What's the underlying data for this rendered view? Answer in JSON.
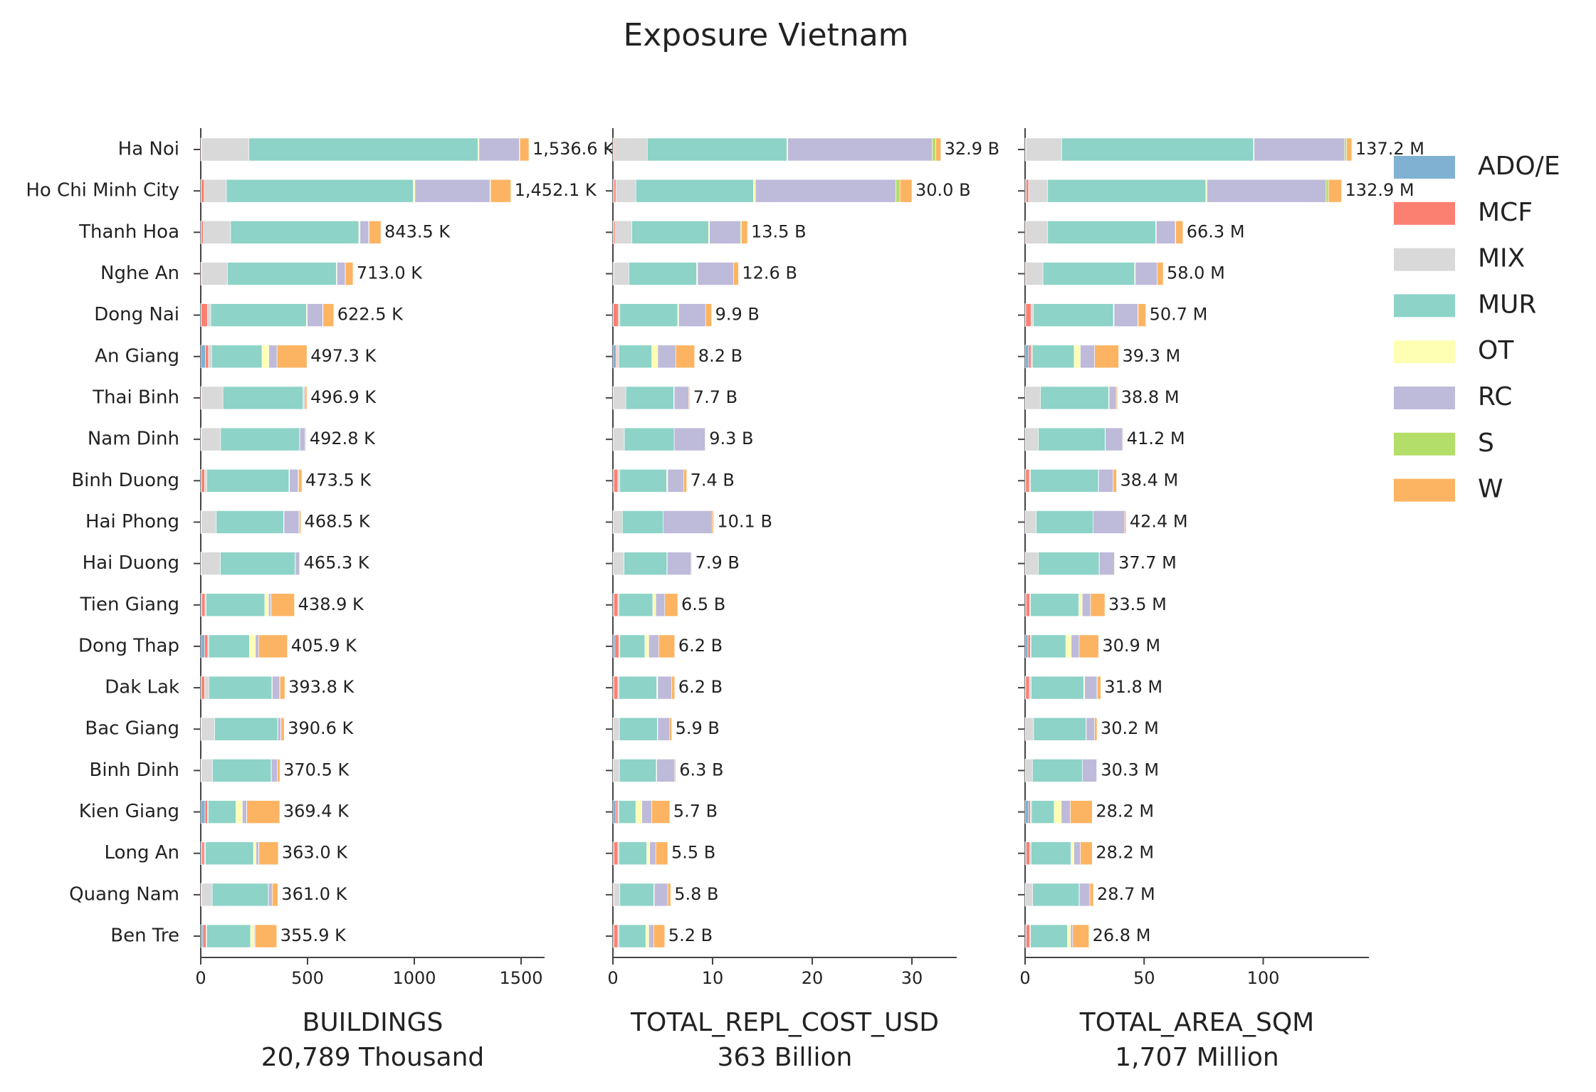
{
  "title": "Exposure Vietnam",
  "chart_data": [
    {
      "type": "bar",
      "orientation": "horizontal",
      "xlabel": "BUILDINGS",
      "xlabel_note": "20,789 Thousand",
      "categories": [
        "Ha Noi",
        "Ho Chi Minh City",
        "Thanh Hoa",
        "Nghe An",
        "Dong Nai",
        "An Giang",
        "Thai Binh",
        "Nam Dinh",
        "Binh Duong",
        "Hai Phong",
        "Hai Duong",
        "Tien Giang",
        "Dong Thap",
        "Dak Lak",
        "Bac Giang",
        "Binh Dinh",
        "Kien Giang",
        "Long An",
        "Quang Nam",
        "Ben Tre"
      ],
      "xlim": [
        0,
        1610
      ],
      "xticks": [
        0,
        500,
        1000,
        1500
      ],
      "series": [
        {
          "name": "ADO/E",
          "color": "#80b1d3",
          "values": [
            1,
            2,
            2,
            1,
            2,
            22,
            1,
            1,
            3,
            1,
            1,
            5,
            18,
            3,
            1,
            1,
            20,
            5,
            1,
            10
          ]
        },
        {
          "name": "MCF",
          "color": "#fb8072",
          "values": [
            3,
            14,
            10,
            4,
            30,
            14,
            3,
            2,
            15,
            2,
            1,
            15,
            15,
            15,
            2,
            2,
            12,
            12,
            3,
            15
          ]
        },
        {
          "name": "MIX",
          "color": "#d9d9d9",
          "values": [
            222,
            104,
            128,
            120,
            15,
            15,
            100,
            90,
            10,
            70,
            90,
            5,
            5,
            20,
            62,
            52,
            3,
            5,
            50,
            3
          ]
        },
        {
          "name": "MUR",
          "color": "#8dd3c7",
          "values": [
            1072,
            875,
            600,
            510,
            448,
            236,
            375,
            370,
            385,
            315,
            350,
            275,
            190,
            295,
            295,
            275,
            130,
            225,
            262,
            205
          ]
        },
        {
          "name": "OT",
          "color": "#ffffb3",
          "values": [
            5,
            8,
            6,
            3,
            4,
            32,
            2,
            1,
            3,
            2,
            1,
            18,
            28,
            2,
            1,
            1,
            30,
            12,
            1,
            18
          ]
        },
        {
          "name": "RC",
          "color": "#bebada",
          "values": [
            188,
            351,
            40,
            38,
            72,
            38,
            6,
            25,
            40,
            70,
            20,
            10,
            15,
            35,
            14,
            28,
            20,
            12,
            18,
            5
          ]
        },
        {
          "name": "S",
          "color": "#b3de69",
          "values": [
            3,
            3,
            2,
            1,
            1.5,
            0,
            0.4,
            0.3,
            2,
            1,
            0.3,
            0.9,
            0,
            1,
            0.6,
            0.5,
            0.4,
            1,
            0,
            0
          ]
        },
        {
          "name": "W",
          "color": "#fdb462",
          "values": [
            42.6,
            95.1,
            55.5,
            36,
            50,
            140.3,
            9.5,
            3.5,
            15.5,
            7.5,
            2,
            110,
            134.9,
            22.8,
            15,
            11,
            154,
            91,
            26,
            99.9
          ]
        }
      ],
      "totals": [
        1536.6,
        1452.1,
        843.5,
        713.0,
        622.5,
        497.3,
        496.9,
        492.8,
        473.5,
        468.5,
        465.3,
        438.9,
        405.9,
        393.8,
        390.6,
        370.5,
        369.4,
        363.0,
        361.0,
        355.9
      ],
      "total_labels": [
        "1,536.6 K",
        "1,452.1 K",
        "843.5 K",
        "713.0 K",
        "622.5 K",
        "497.3 K",
        "496.9 K",
        "492.8 K",
        "473.5 K",
        "468.5 K",
        "465.3 K",
        "438.9 K",
        "405.9 K",
        "393.8 K",
        "390.6 K",
        "370.5 K",
        "369.4 K",
        "363.0 K",
        "361.0 K",
        "355.9 K"
      ]
    },
    {
      "type": "bar",
      "orientation": "horizontal",
      "xlabel": "TOTAL_REPL_COST_USD",
      "xlabel_note": "363 Billion",
      "xlim": [
        0,
        34.5
      ],
      "xticks": [
        0,
        10,
        20,
        30
      ],
      "series": [
        {
          "values": [
            0.05,
            0.1,
            0.05,
            0.02,
            0.05,
            0.3,
            0,
            0,
            0.1,
            0,
            0,
            0.1,
            0.2,
            0.1,
            0,
            0,
            0.3,
            0.1,
            0.02,
            0.1
          ]
        },
        {
          "values": [
            0.1,
            0.2,
            0.15,
            0.08,
            0.5,
            0.1,
            0.05,
            0.05,
            0.4,
            0.05,
            0.02,
            0.4,
            0.4,
            0.4,
            0.05,
            0.05,
            0.2,
            0.4,
            0.08,
            0.4
          ]
        },
        {
          "values": [
            3.3,
            2.0,
            1.7,
            1.5,
            0.15,
            0.2,
            1.25,
            1.1,
            0.2,
            0.9,
            1.1,
            0.1,
            0.1,
            0.1,
            0.6,
            0.6,
            0.1,
            0.1,
            0.6,
            0.1
          ]
        },
        {
          "values": [
            14.0,
            11.8,
            7.7,
            6.8,
            5.8,
            3.3,
            4.8,
            5.0,
            4.7,
            4.1,
            4.3,
            3.4,
            2.5,
            3.8,
            3.8,
            3.7,
            1.7,
            2.8,
            3.4,
            2.7
          ]
        },
        {
          "values": [
            0.1,
            0.2,
            0.1,
            0.1,
            0.1,
            0.6,
            0.05,
            0,
            0.1,
            0,
            0.03,
            0.3,
            0.4,
            0.1,
            0.05,
            0.05,
            0.6,
            0.3,
            0.05,
            0.3
          ]
        },
        {
          "values": [
            14.5,
            14.1,
            3.1,
            3.6,
            2.7,
            1.8,
            1.45,
            3.1,
            1.6,
            4.9,
            2.4,
            0.9,
            1.0,
            1.4,
            1.2,
            1.8,
            1.0,
            0.6,
            1.35,
            0.5
          ]
        },
        {
          "values": [
            0.35,
            0.4,
            0.1,
            0,
            0,
            0,
            0,
            0,
            0,
            0,
            0,
            0,
            0,
            0,
            0,
            0,
            0,
            0,
            0,
            0
          ]
        },
        {
          "values": [
            0.5,
            1.2,
            0.6,
            0.5,
            0.6,
            1.9,
            0.1,
            0.05,
            0.3,
            0.15,
            0.05,
            1.3,
            1.6,
            0.3,
            0.2,
            0.1,
            1.8,
            1.2,
            0.3,
            1.1
          ]
        }
      ],
      "totals": [
        32.9,
        30.0,
        13.5,
        12.6,
        9.9,
        8.2,
        7.7,
        9.3,
        7.4,
        10.1,
        7.9,
        6.5,
        6.2,
        6.2,
        5.9,
        6.3,
        5.7,
        5.5,
        5.8,
        5.2
      ],
      "total_labels": [
        "32.9 B",
        "30.0 B",
        "13.5 B",
        "12.6 B",
        "9.9 B",
        "8.2 B",
        "7.7 B",
        "9.3 B",
        "7.4 B",
        "10.1 B",
        "7.9 B",
        "6.5 B",
        "6.2 B",
        "6.2 B",
        "5.9 B",
        "6.3 B",
        "5.7 B",
        "5.5 B",
        "5.8 B",
        "5.2 B"
      ]
    },
    {
      "type": "bar",
      "orientation": "horizontal",
      "xlabel": "TOTAL_AREA_SQM",
      "xlabel_note": "1,707 Million",
      "xlim": [
        0,
        144.4
      ],
      "xticks": [
        0,
        50,
        100
      ],
      "series": [
        {
          "values": [
            0.1,
            0.5,
            0.1,
            0.1,
            0.3,
            1.5,
            0,
            0,
            0.3,
            0,
            0,
            0.4,
            1.2,
            0.3,
            0,
            0,
            1.5,
            0.5,
            0,
            0.5
          ]
        },
        {
          "values": [
            0.3,
            1.0,
            0.4,
            0.4,
            2.2,
            1,
            0.2,
            0.1,
            1.5,
            0.2,
            0.1,
            1.5,
            1.0,
            1.5,
            0.1,
            0.1,
            0.7,
            1.5,
            0.2,
            1.5
          ]
        },
        {
          "values": [
            15,
            8,
            9,
            7,
            1,
            0.6,
            6.3,
            5.5,
            0.5,
            4.5,
            5.5,
            0.4,
            0.3,
            0.8,
            3.5,
            3,
            0.5,
            0.5,
            3,
            0.3
          ]
        },
        {
          "values": [
            80.5,
            66.4,
            45.3,
            38.5,
            33.6,
            17.5,
            28.6,
            28,
            28.5,
            23.8,
            25.5,
            20.3,
            14.6,
            22,
            22,
            21,
            9.5,
            16.8,
            19.5,
            15.5
          ]
        },
        {
          "values": [
            0.3,
            0.5,
            0.3,
            0.3,
            0.3,
            2.6,
            0.2,
            0.1,
            0.1,
            0,
            0.1,
            1.4,
            2.3,
            0.4,
            0.1,
            0,
            3,
            1.2,
            0.1,
            1.3
          ]
        },
        {
          "values": [
            38,
            50,
            8,
            9.2,
            10,
            6,
            3,
            7.2,
            6,
            13.3,
            6.3,
            3.5,
            3.3,
            5.2,
            3.5,
            6,
            3.8,
            2.7,
            4.4,
            0.9
          ]
        },
        {
          "values": [
            0.8,
            1,
            0.2,
            0,
            0.1,
            0,
            0,
            0,
            0,
            0,
            0,
            0,
            0,
            0.1,
            0,
            0,
            0,
            0,
            0,
            0
          ]
        },
        {
          "values": [
            2.2,
            5.5,
            3,
            2.5,
            3.2,
            10.1,
            0.5,
            0.3,
            1.5,
            0.6,
            0.2,
            6,
            8.2,
            1.5,
            1,
            0.2,
            9.2,
            5,
            1.5,
            6.8
          ]
        }
      ],
      "totals": [
        137.2,
        132.9,
        66.3,
        58.0,
        50.7,
        39.3,
        38.8,
        41.2,
        38.4,
        42.4,
        37.7,
        33.5,
        30.9,
        31.8,
        30.2,
        30.3,
        28.2,
        28.2,
        28.7,
        26.8
      ],
      "total_labels": [
        "137.2 M",
        "132.9 M",
        "66.3 M",
        "58.0 M",
        "50.7 M",
        "39.3 M",
        "38.8 M",
        "41.2 M",
        "38.4 M",
        "42.4 M",
        "37.7 M",
        "33.5 M",
        "30.9 M",
        "31.8 M",
        "30.2 M",
        "30.3 M",
        "28.2 M",
        "28.2 M",
        "28.7 M",
        "26.8 M"
      ]
    }
  ]
}
